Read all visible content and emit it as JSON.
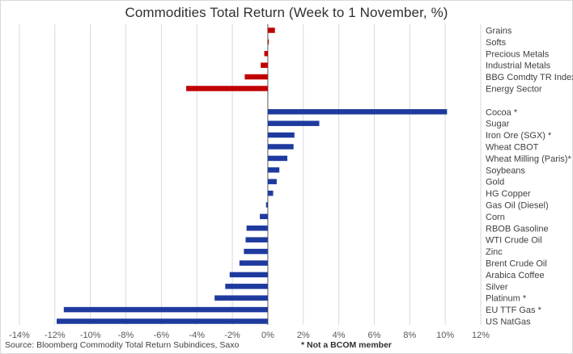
{
  "chart_data": {
    "type": "bar",
    "orientation": "horizontal",
    "title": "Commodities Total Return (Week to 1 November, %)",
    "xlabel": "",
    "ylabel": "",
    "xlim": [
      -14,
      12
    ],
    "x_ticks": [
      "-14%",
      "-12%",
      "-10%",
      "-8%",
      "-6%",
      "-4%",
      "-2%",
      "0%",
      "2%",
      "4%",
      "6%",
      "8%",
      "10%",
      "12%"
    ],
    "grid": "vertical",
    "colors": {
      "sector": "#c00000",
      "commodity": "#1f3a9e",
      "grid": "#d9d9d9",
      "zero_line": "#595959"
    },
    "groups": [
      {
        "name": "sectors",
        "color": "#c00000",
        "categories": [
          "Grains",
          "Softs",
          "Precious Metals",
          "Industrial Metals",
          "BBG Comdty TR Index",
          "Energy Sector"
        ],
        "values": [
          0.4,
          0.05,
          -0.2,
          -0.4,
          -1.3,
          -4.6
        ]
      },
      {
        "name": "commodities",
        "color": "#1f3a9e",
        "categories": [
          "Cocoa *",
          "Sugar",
          "Iron Ore (SGX) *",
          "Wheat CBOT",
          "Wheat Milling (Paris)*",
          "Soybeans",
          "Gold",
          "HG Copper",
          "Gas Oil (Diesel)",
          "Corn",
          "RBOB Gasoline",
          "WTI Crude Oil",
          "Zinc",
          "Brent Crude Oil",
          "Arabica Coffee",
          "Silver",
          "Platinum *",
          "EU TTF Gas *",
          "US NatGas"
        ],
        "values": [
          10.1,
          2.9,
          1.5,
          1.45,
          1.1,
          0.65,
          0.5,
          0.3,
          -0.1,
          -0.45,
          -1.2,
          -1.25,
          -1.35,
          -1.6,
          -2.15,
          -2.4,
          -3.0,
          -11.5,
          -11.9
        ]
      }
    ]
  },
  "footer": {
    "source": "Source: Bloomberg Commodity Total Return Subindices, Saxo",
    "note": "* Not a BCOM member"
  }
}
